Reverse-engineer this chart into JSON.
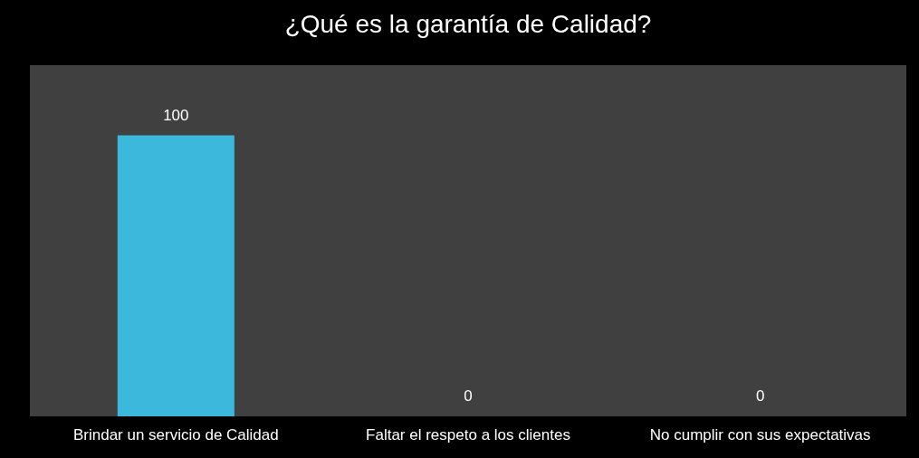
{
  "chart_data": {
    "type": "bar",
    "title": "¿Qué es la garantía de Calidad?",
    "categories": [
      "Brindar un servicio de Calidad",
      "Faltar el respeto a los clientes",
      "No cumplir con sus expectativas"
    ],
    "values": [
      100,
      0,
      0
    ],
    "color": "#3bb8dc",
    "data_labels": true,
    "tick_labels": "x"
  }
}
